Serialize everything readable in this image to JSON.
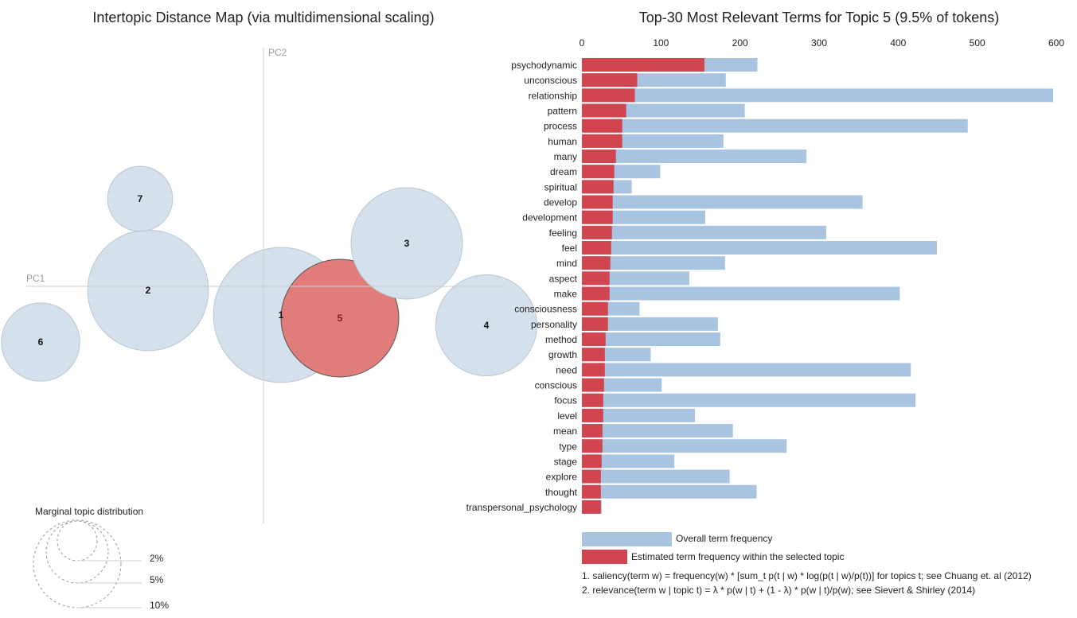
{
  "left_panel": {
    "title": "Intertopic Distance Map (via multidimensional scaling)",
    "axis_pc1": "PC1",
    "axis_pc2": "PC2",
    "selected_topic": "5",
    "marginal_title": "Marginal topic distribution",
    "marginal_labels": [
      "2%",
      "5%",
      "10%"
    ]
  },
  "right_panel": {
    "title": "Top-30 Most Relevant Terms for Topic 5 (9.5% of tokens)",
    "legend_overall": "Overall term frequency",
    "legend_topic": "Estimated term frequency within the selected topic",
    "footnote_1": "1. saliency(term w) = frequency(w) * [sum_t p(t | w) * log(p(t | w)/p(t))] for topics t; see Chuang et. al (2012)",
    "footnote_2": "2. relevance(term w | topic t) = λ * p(w | t) + (1 - λ) * p(w | t)/p(w); see Sievert & Shirley (2014)"
  },
  "colors": {
    "overall_bar": "#a9c4e0",
    "topic_bar": "#d0454f",
    "bubble_fill": "#d4e1ec",
    "bubble_stroke": "#b9c7d3",
    "selected_bubble_fill": "#e07d7b",
    "axis_line": "#cccccc",
    "text": "#222222"
  },
  "chart_data": [
    {
      "type": "scatter",
      "title": "Intertopic Distance Map (via multidimensional scaling)",
      "xlabel": "PC1",
      "ylabel": "PC2",
      "points": [
        {
          "topic": "1",
          "pc1": 0.22,
          "pc2": -0.36,
          "size_pct": 12.5
        },
        {
          "topic": "2",
          "pc1": -1.45,
          "pc2": -0.05,
          "size_pct": 10.0
        },
        {
          "topic": "3",
          "pc1": 1.8,
          "pc2": 0.54,
          "size_pct": 8.5
        },
        {
          "topic": "4",
          "pc1": 2.8,
          "pc2": -0.49,
          "size_pct": 7.0
        },
        {
          "topic": "5",
          "pc1": 0.96,
          "pc2": -0.4,
          "size_pct": 9.5
        },
        {
          "topic": "6",
          "pc1": -2.8,
          "pc2": -0.7,
          "size_pct": 4.2
        },
        {
          "topic": "7",
          "pc1": -1.55,
          "pc2": 1.1,
          "size_pct": 2.9
        }
      ]
    },
    {
      "type": "bar",
      "orientation": "horizontal",
      "title": "Top-30 Most Relevant Terms for Topic 5 (9.5% of tokens)",
      "xlim": [
        0,
        600
      ],
      "x_ticks": [
        0,
        100,
        200,
        300,
        400,
        500,
        600
      ],
      "categories": [
        "psychodynamic",
        "unconscious",
        "relationship",
        "pattern",
        "process",
        "human",
        "many",
        "dream",
        "spiritual",
        "develop",
        "development",
        "feeling",
        "feel",
        "mind",
        "aspect",
        "make",
        "consciousness",
        "personality",
        "method",
        "growth",
        "need",
        "conscious",
        "focus",
        "level",
        "mean",
        "type",
        "stage",
        "explore",
        "thought",
        "transpersonal_psychology"
      ],
      "series": [
        {
          "name": "Overall term frequency",
          "values": [
            222,
            182,
            596,
            206,
            488,
            179,
            284,
            99,
            63,
            355,
            156,
            309,
            449,
            181,
            136,
            402,
            73,
            172,
            175,
            87,
            416,
            101,
            422,
            143,
            191,
            259,
            117,
            187,
            221,
            25
          ]
        },
        {
          "name": "Estimated term frequency within the selected topic",
          "values": [
            155,
            70,
            67,
            56,
            51,
            51,
            43,
            41,
            40,
            39,
            39,
            38,
            37,
            36,
            35,
            35,
            33,
            33,
            30,
            29,
            29,
            28,
            27,
            27,
            26,
            26,
            25,
            24,
            24,
            24
          ]
        }
      ]
    }
  ]
}
